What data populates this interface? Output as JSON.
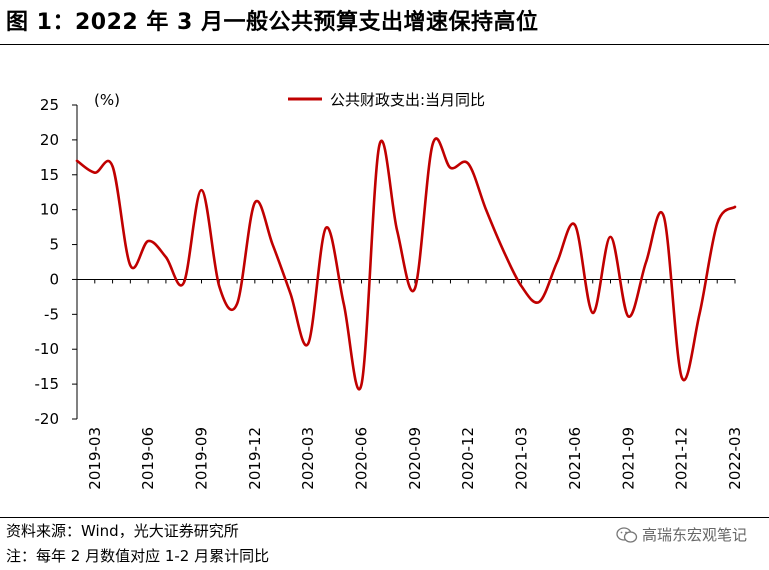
{
  "header": {
    "title": "图 1：2022 年 3 月一般公共预算支出增速保持高位"
  },
  "footer": {
    "source": "资料来源：Wind，光大证券研究所",
    "note": "注：每年 2 月数值对应 1-2 月累计同比"
  },
  "watermark": {
    "text": "高瑞东宏观笔记",
    "icon": "wechat-icon"
  },
  "colors": {
    "series": "#C00000",
    "axis": "#000000"
  },
  "chart_data": {
    "type": "line",
    "title": "",
    "ylabel": "(%)",
    "xlabel": "",
    "ylim": [
      -20,
      25
    ],
    "yticks": [
      -20,
      -15,
      -10,
      -5,
      0,
      5,
      10,
      15,
      20,
      25
    ],
    "legend": "top-center",
    "grid": false,
    "x": [
      "2019-02",
      "2019-03",
      "2019-04",
      "2019-05",
      "2019-06",
      "2019-07",
      "2019-08",
      "2019-09",
      "2019-10",
      "2019-11",
      "2019-12",
      "2020-01",
      "2020-02",
      "2020-03",
      "2020-04",
      "2020-05",
      "2020-06",
      "2020-07",
      "2020-08",
      "2020-09",
      "2020-10",
      "2020-11",
      "2020-12",
      "2021-01",
      "2021-02",
      "2021-03",
      "2021-04",
      "2021-05",
      "2021-06",
      "2021-07",
      "2021-08",
      "2021-09",
      "2021-10",
      "2021-11",
      "2021-12",
      "2022-01",
      "2022-02",
      "2022-03"
    ],
    "xtick_labels": [
      "2019-03",
      "2019-06",
      "2019-09",
      "2019-12",
      "2020-03",
      "2020-06",
      "2020-09",
      "2020-12",
      "2021-03",
      "2021-06",
      "2021-09",
      "2021-12",
      "2022-03"
    ],
    "series": [
      {
        "name": "公共财政支出:当月同比",
        "values": [
          17.0,
          15.3,
          16.2,
          2.0,
          5.5,
          3.2,
          -0.5,
          12.8,
          -1.0,
          -3.5,
          11.0,
          5.0,
          -2.0,
          -9.2,
          7.4,
          -3.5,
          -15.0,
          19.2,
          7.0,
          -1.3,
          19.4,
          16.0,
          16.6,
          10.0,
          4.0,
          -1.0,
          -3.2,
          2.5,
          7.8,
          -4.8,
          6.1,
          -5.3,
          2.5,
          9.0,
          -14.0,
          -5.0,
          8.0,
          10.4
        ]
      }
    ]
  }
}
